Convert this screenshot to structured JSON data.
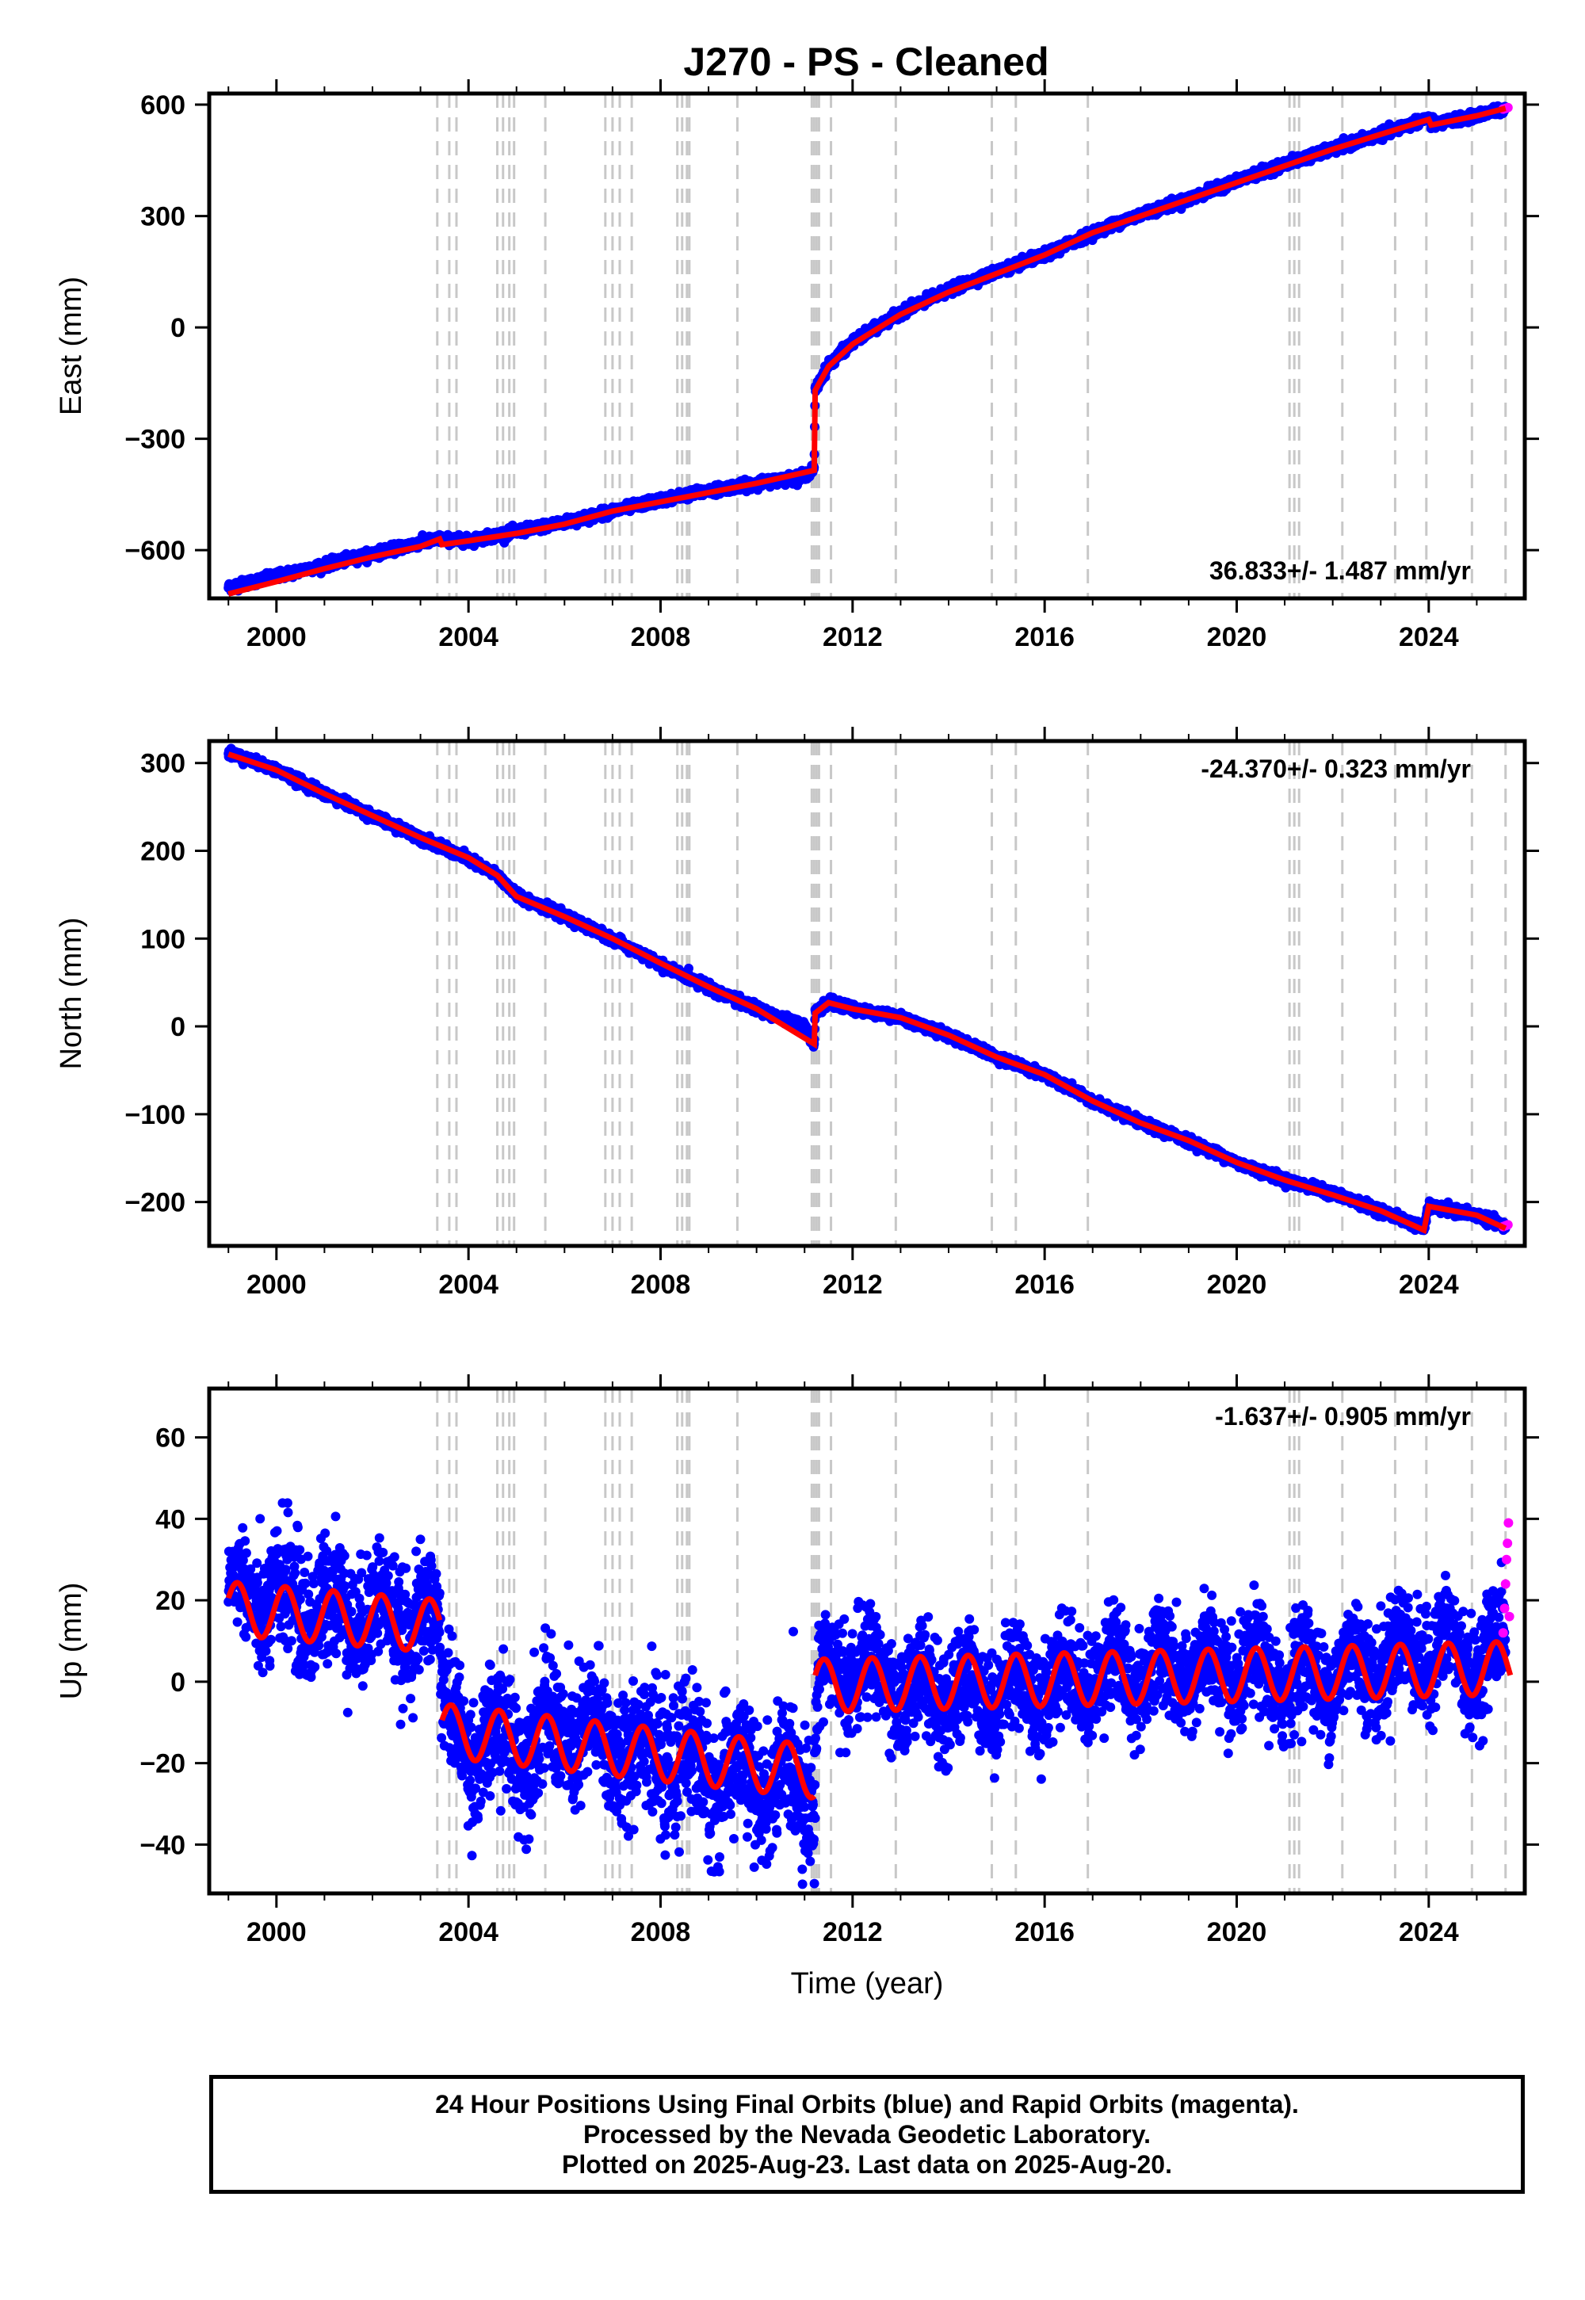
{
  "chart_data": [
    {
      "type": "scatter",
      "title": "J270  - PS - Cleaned",
      "ylabel": "East (mm)",
      "xlabel": "",
      "xlim": [
        1998.6,
        2026.0
      ],
      "ylim": [
        -730,
        630
      ],
      "x_ticks": [
        "2000",
        "2004",
        "2008",
        "2012",
        "2016",
        "2020",
        "2024"
      ],
      "y_ticks": [
        "600",
        "300",
        "0",
        "−300",
        "−600"
      ],
      "y_tick_values": [
        600,
        300,
        0,
        -300,
        -600
      ],
      "rate_label": "36.833+/- 1.487 mm/yr",
      "grid": false,
      "series": [
        {
          "name": "Final Orbits",
          "color": "#0000ff",
          "x": [
            1999.0,
            2000.0,
            2001.0,
            2002.0,
            2003.0,
            2003.4,
            2004.0,
            2005.0,
            2006.0,
            2007.0,
            2008.0,
            2009.0,
            2010.0,
            2011.0,
            2011.2,
            2011.22,
            2011.5,
            2012.0,
            2013.0,
            2014.0,
            2015.0,
            2016.0,
            2017.0,
            2018.0,
            2019.0,
            2020.0,
            2021.0,
            2022.0,
            2023.0,
            2024.0,
            2024.05,
            2025.0,
            2025.6
          ],
          "values": [
            -700,
            -670,
            -640,
            -610,
            -580,
            -570,
            -575,
            -550,
            -525,
            -495,
            -465,
            -440,
            -420,
            -400,
            -380,
            -170,
            -100,
            -40,
            40,
            100,
            150,
            195,
            255,
            305,
            345,
            395,
            440,
            480,
            520,
            565,
            545,
            570,
            590
          ]
        },
        {
          "name": "Rapid Orbits",
          "color": "#ff00ff",
          "x": [
            2025.55,
            2025.6,
            2025.65
          ],
          "values": [
            588,
            590,
            592
          ]
        },
        {
          "name": "Model",
          "color": "#ff0000",
          "x": [
            1999.0,
            2000.0,
            2001.0,
            2002.0,
            2003.0,
            2003.4,
            2003.45,
            2004.0,
            2005.0,
            2006.0,
            2007.0,
            2008.0,
            2009.0,
            2010.0,
            2011.2,
            2011.22,
            2011.5,
            2012.0,
            2013.0,
            2014.0,
            2015.0,
            2016.0,
            2017.0,
            2018.0,
            2019.0,
            2020.0,
            2021.0,
            2022.0,
            2023.0,
            2024.0,
            2024.05,
            2025.0,
            2025.6
          ],
          "values": [
            -718,
            -685,
            -650,
            -618,
            -590,
            -570,
            -585,
            -575,
            -555,
            -530,
            -495,
            -470,
            -445,
            -420,
            -385,
            -170,
            -105,
            -45,
            35,
            95,
            145,
            195,
            255,
            300,
            345,
            390,
            435,
            480,
            520,
            560,
            545,
            570,
            590
          ]
        }
      ]
    },
    {
      "type": "scatter",
      "title": "",
      "ylabel": "North (mm)",
      "xlabel": "",
      "xlim": [
        1998.6,
        2026.0
      ],
      "ylim": [
        -250,
        325
      ],
      "x_ticks": [
        "2000",
        "2004",
        "2008",
        "2012",
        "2016",
        "2020",
        "2024"
      ],
      "y_ticks": [
        "300",
        "200",
        "100",
        "0",
        "−100",
        "−200"
      ],
      "y_tick_values": [
        300,
        200,
        100,
        0,
        -100,
        -200
      ],
      "rate_label": "-24.370+/- 0.323 mm/yr",
      "grid": false,
      "series": [
        {
          "name": "Final Orbits",
          "color": "#0000ff",
          "x": [
            1999.0,
            2000.0,
            2001.0,
            2002.0,
            2003.0,
            2004.0,
            2004.6,
            2005.0,
            2006.0,
            2007.0,
            2008.0,
            2009.0,
            2010.0,
            2011.0,
            2011.2,
            2011.22,
            2011.5,
            2012.0,
            2013.0,
            2014.0,
            2015.0,
            2016.0,
            2017.0,
            2018.0,
            2019.0,
            2020.0,
            2021.0,
            2022.0,
            2023.0,
            2023.9,
            2024.0,
            2025.0,
            2025.6
          ],
          "values": [
            312,
            292,
            265,
            240,
            215,
            190,
            172,
            150,
            125,
            100,
            70,
            45,
            20,
            0,
            -20,
            15,
            28,
            20,
            10,
            -10,
            -35,
            -55,
            -85,
            -110,
            -130,
            -155,
            -175,
            -190,
            -210,
            -230,
            -205,
            -215,
            -228
          ]
        },
        {
          "name": "Rapid Orbits",
          "color": "#ff00ff",
          "x": [
            2025.55,
            2025.6,
            2025.65
          ],
          "values": [
            -228,
            -227,
            -226
          ]
        },
        {
          "name": "Model",
          "color": "#ff0000",
          "x": [
            1999.0,
            2000.0,
            2001.0,
            2002.0,
            2003.0,
            2004.0,
            2004.6,
            2005.0,
            2006.0,
            2007.0,
            2008.0,
            2009.0,
            2010.0,
            2011.2,
            2011.22,
            2011.5,
            2012.0,
            2013.0,
            2014.0,
            2015.0,
            2016.0,
            2017.0,
            2018.0,
            2019.0,
            2020.0,
            2021.0,
            2022.0,
            2023.0,
            2023.9,
            2024.0,
            2025.0,
            2025.6
          ],
          "values": [
            310,
            292,
            265,
            240,
            215,
            192,
            172,
            148,
            125,
            100,
            72,
            45,
            20,
            -20,
            15,
            27,
            20,
            10,
            -10,
            -35,
            -55,
            -85,
            -110,
            -130,
            -155,
            -175,
            -192,
            -210,
            -232,
            -205,
            -215,
            -230
          ]
        }
      ]
    },
    {
      "type": "scatter",
      "title": "",
      "ylabel": "Up (mm)",
      "xlabel": "Time (year)",
      "xlim": [
        1998.6,
        2026.0
      ],
      "ylim": [
        -52,
        72
      ],
      "x_ticks": [
        "2000",
        "2004",
        "2008",
        "2012",
        "2016",
        "2020",
        "2024"
      ],
      "y_ticks": [
        "60",
        "40",
        "20",
        "0",
        "−20",
        "−40"
      ],
      "y_tick_values": [
        60,
        40,
        20,
        0,
        -20,
        -40
      ],
      "rate_label": "-1.637+/- 0.905 mm/yr",
      "grid": false,
      "series": [
        {
          "name": "Final Orbits",
          "color": "#0000ff",
          "x": [
            1999.0,
            2000.0,
            2001.0,
            2002.0,
            2003.0,
            2003.4,
            2003.5,
            2004.0,
            2005.0,
            2006.0,
            2007.0,
            2008.0,
            2009.0,
            2010.0,
            2011.0,
            2011.2,
            2011.3,
            2012.0,
            2013.0,
            2014.0,
            2015.0,
            2016.0,
            2017.0,
            2018.0,
            2019.0,
            2020.0,
            2021.0,
            2022.0,
            2023.0,
            2024.0,
            2025.0,
            2025.6
          ],
          "values": [
            22,
            20,
            18,
            17,
            15,
            12,
            -10,
            -15,
            -15,
            -12,
            -15,
            -18,
            -22,
            -25,
            -26,
            -28,
            2,
            4,
            -2,
            -3,
            -2,
            -1,
            2,
            3,
            3,
            2,
            1,
            2,
            5,
            8,
            5,
            8
          ],
          "scatter": [
            6,
            10,
            10,
            9,
            9,
            9,
            9,
            9,
            10,
            10,
            10,
            10,
            10,
            10,
            10,
            10,
            8,
            8,
            8,
            8,
            8,
            8,
            8,
            8,
            8,
            8,
            8,
            8,
            8,
            8,
            8,
            8
          ]
        },
        {
          "name": "Rapid Orbits",
          "color": "#ff00ff",
          "x": [
            2025.55,
            2025.58,
            2025.6,
            2025.62,
            2025.64,
            2025.66,
            2025.68
          ],
          "values": [
            12,
            18,
            24,
            30,
            34,
            39,
            16
          ]
        },
        {
          "name": "Model",
          "color": "#ff0000",
          "x": "seasonal",
          "segments": [
            {
              "from": 1999.0,
              "to": 2003.4,
              "offset": 18,
              "trend": -1.0,
              "amp": 6.5,
              "base_year": 1999.0
            },
            {
              "from": 2003.45,
              "to": 2011.2,
              "offset": -12,
              "trend": -1.3,
              "amp": 6.5,
              "base_year": 2003.45
            },
            {
              "from": 2011.22,
              "to": 2025.7,
              "offset": -1,
              "trend": 0.3,
              "amp": 6.5,
              "base_year": 2011.22
            }
          ]
        }
      ]
    }
  ],
  "event_lines": [
    2003.35,
    2003.6,
    2003.75,
    2004.6,
    2004.72,
    2004.85,
    2004.95,
    2005.6,
    2006.85,
    2007.0,
    2007.15,
    2007.4,
    2008.35,
    2008.45,
    2008.55,
    2008.6,
    2009.6,
    2011.15,
    2011.2,
    2011.25,
    2011.3,
    2011.55,
    2012.9,
    2014.9,
    2015.4,
    2016.9,
    2021.1,
    2021.2,
    2021.3,
    2022.2,
    2023.3,
    2023.95,
    2024.9,
    2025.6
  ],
  "event_line_color": "#c8c8c8",
  "footer": {
    "line1": "24 Hour Positions Using Final Orbits (blue) and Rapid Orbits (magenta).",
    "line2": "Processed by the Nevada Geodetic Laboratory.",
    "line3": "Plotted on 2025-Aug-23. Last data on 2025-Aug-20."
  }
}
